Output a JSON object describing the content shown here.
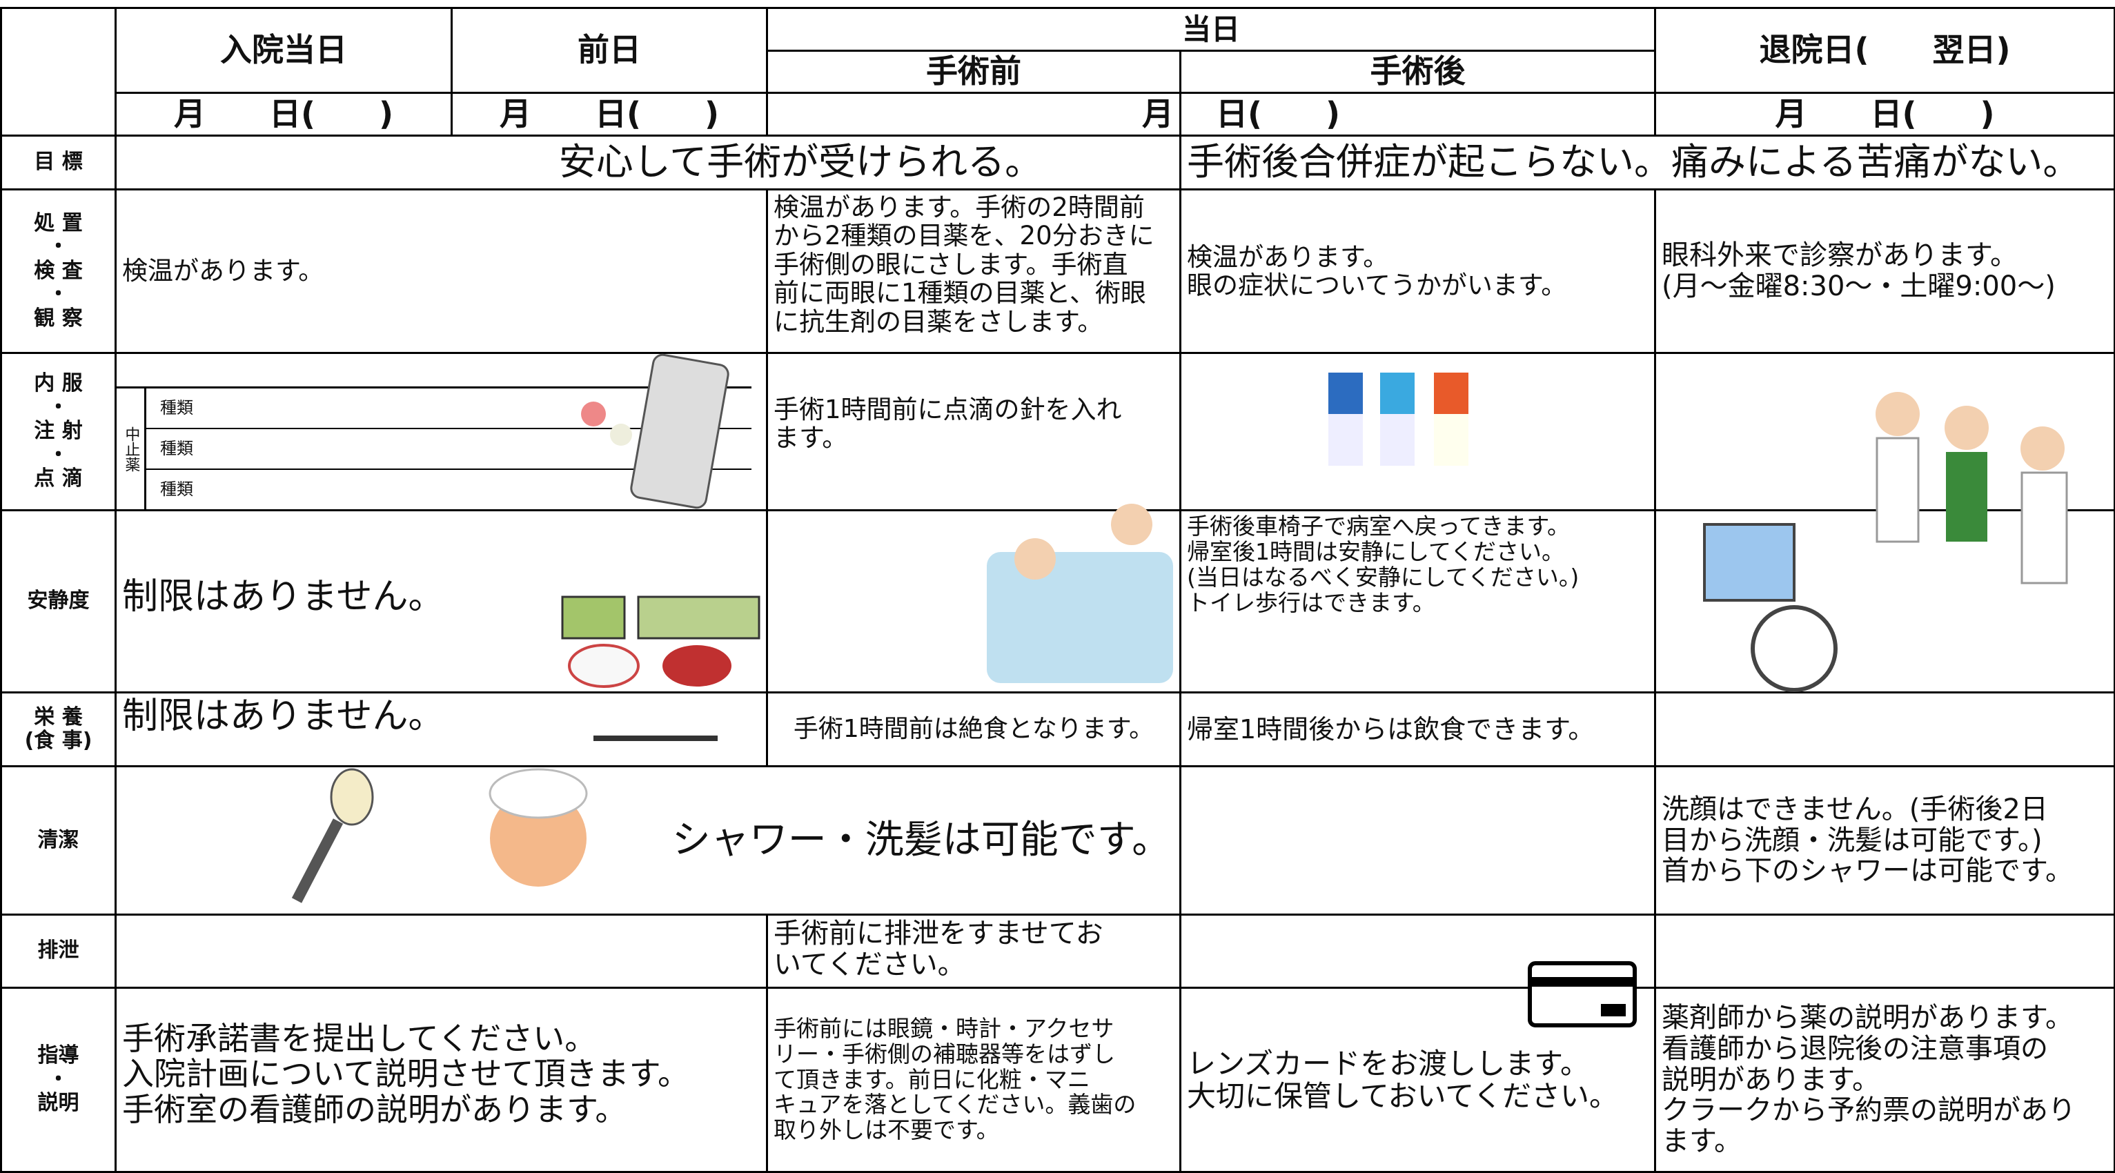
{
  "header": {
    "admission": "入院当日",
    "before": "前日",
    "surgery_day": "当日",
    "pre_op": "手術前",
    "post_op": "手術後",
    "discharge": "退院日(　　翌日)",
    "dates": [
      "月　　日(　　)",
      "月　　日(　　)",
      "月",
      "日(　　)",
      "月　　日(　　)"
    ]
  },
  "rows": [
    {
      "label": [
        "目 標"
      ],
      "cells": [
        {
          "lines": [
            "安心して手術が受けられる。"
          ]
        },
        {
          "lines": [
            "手術後合併症が起こらない。痛みによる苦痛がない。"
          ]
        }
      ]
    },
    {
      "label": [
        "処 置",
        "・",
        "検 査",
        "・",
        "観 察"
      ],
      "cells": [
        {
          "lines": [
            "検温があります。"
          ]
        },
        {
          "lines": [
            "検温があります。手術の2時間前",
            "から2種類の目薬を、20分おきに",
            "手術側の眼にさします。手術直",
            "前に両眼に1種類の目薬と、術眼",
            "に抗生剤の目薬をさします。"
          ]
        },
        {
          "lines": [
            "検温があります。",
            "眼の症状についてうかがいます。"
          ]
        },
        {
          "lines": [
            "眼科外来で診察があります。",
            "(月～金曜8:30～・土曜9:00～)"
          ]
        }
      ]
    },
    {
      "label": [
        "内 服",
        "・",
        "注 射",
        "・",
        "点 滴"
      ],
      "cells": [
        {
          "side": "中止薬",
          "items": [
            "種類",
            "種類",
            "種類"
          ]
        },
        {
          "lines": [
            "手術1時間前に点滴の針を入れ",
            "ます。"
          ]
        },
        {
          "lines": []
        },
        {
          "lines": []
        }
      ]
    },
    {
      "label": [
        "安静度"
      ],
      "cells": [
        {
          "lines": [
            "制限はありません。"
          ]
        },
        {
          "lines": []
        },
        {
          "lines": [
            "手術後車椅子で病室へ戻ってきます。",
            "帰室後1時間は安静にしてください。",
            "(当日はなるべく安静にしてください。)",
            "トイレ歩行はできます。"
          ]
        },
        {
          "lines": []
        }
      ]
    },
    {
      "label": [
        "栄 養",
        "(食 事)"
      ],
      "cells": [
        {
          "lines": [
            "制限はありません。"
          ]
        },
        {
          "lines": [
            "手術1時間前は絶食となります。"
          ]
        },
        {
          "lines": [
            "帰室1時間後からは飲食できます。"
          ]
        },
        {
          "lines": []
        }
      ]
    },
    {
      "label": [
        "清潔"
      ],
      "cells": [
        {
          "lines": [
            "シャワー・洗髪は可能です。"
          ]
        },
        {
          "lines": []
        },
        {
          "lines": [
            "洗顔はできません。(手術後2日",
            "目から洗顔・洗髪は可能です。)",
            "首から下のシャワーは可能です。"
          ]
        }
      ]
    },
    {
      "label": [
        "排泄"
      ],
      "cells": [
        {
          "lines": []
        },
        {
          "lines": [
            "手術前に排泄をすませてお",
            "いてください。"
          ]
        },
        {
          "lines": []
        },
        {
          "lines": []
        }
      ]
    },
    {
      "label": [
        "指導",
        "・",
        "説明"
      ],
      "cells": [
        {
          "lines": [
            "手術承諾書を提出してください。",
            "入院計画について説明させて頂きます。",
            "手術室の看護師の説明があります。"
          ]
        },
        {
          "lines": [
            "手術前には眼鏡・時計・アクセサ",
            "リー・手術側の補聴器等をはずし",
            "て頂きます。前日に化粧・マニ",
            "キュアを落としてください。義歯の",
            "取り外しは不要です。"
          ]
        },
        {
          "lines": [
            "レンズカードをお渡しします。",
            "大切に保管しておいてください。"
          ]
        },
        {
          "lines": [
            "薬剤師から薬の説明があります。",
            "看護師から退院後の注意事項の",
            "説明があります。",
            "クラークから予約票の説明があり",
            "ます。"
          ]
        }
      ]
    }
  ]
}
